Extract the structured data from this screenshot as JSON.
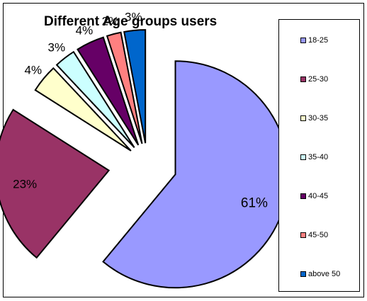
{
  "chart_data": {
    "type": "pie",
    "title": "Different Age groups users",
    "legend_position": "right",
    "categories": [
      "18-25",
      "25-30",
      "30-35",
      "35-40",
      "40-45",
      "45-50",
      "above 50"
    ],
    "values": [
      61,
      23,
      4,
      3,
      4,
      2,
      3
    ],
    "data_labels": [
      "61%",
      "23%",
      "4%",
      "3%",
      "4%",
      "2%",
      "3%"
    ],
    "colors": [
      "#9999ff",
      "#993366",
      "#ffffcc",
      "#ccffff",
      "#660066",
      "#ff8080",
      "#0066cc"
    ]
  }
}
